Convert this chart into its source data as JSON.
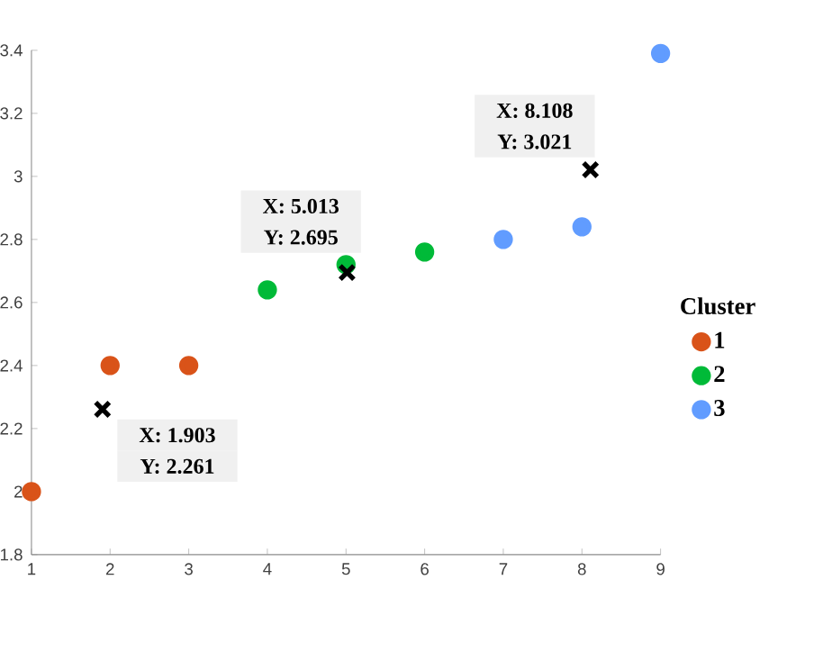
{
  "chart_data": {
    "type": "scatter",
    "legend_title": "Cluster",
    "legend": "right",
    "marker": "circle",
    "xlim": [
      1,
      9
    ],
    "xticks": [
      1,
      2,
      3,
      4,
      5,
      6,
      7,
      8,
      9
    ],
    "ylim": [
      1.8,
      3.4
    ],
    "yticks": [
      1.8,
      2,
      2.2,
      2.4,
      2.6,
      2.8,
      3,
      3.2,
      3.4
    ],
    "series": [
      {
        "name": "1",
        "color": "#d95319",
        "x": [
          1,
          2,
          3
        ],
        "values": [
          2.0,
          2.4,
          2.4
        ]
      },
      {
        "name": "2",
        "color": "#00ba38",
        "x": [
          4,
          5,
          6
        ],
        "values": [
          2.64,
          2.72,
          2.76
        ]
      },
      {
        "name": "3",
        "color": "#619cff",
        "x": [
          7,
          8,
          9
        ],
        "values": [
          2.8,
          2.84,
          3.39
        ]
      },
      {
        "color": "#000000",
        "marker": "cross",
        "x": [
          1.903,
          5.013,
          8.108
        ],
        "values": [
          2.261,
          2.695,
          3.021
        ]
      }
    ],
    "annotations": [
      {
        "text": "X: 1.903",
        "x": 1.903,
        "y": 2.261
      },
      {
        "text": "Y: 2.261",
        "x": 1.903,
        "y": 2.261
      },
      {
        "text": "X: 5.013",
        "x": 5.013,
        "y": 2.695
      },
      {
        "text": "Y: 2.695",
        "x": 5.013,
        "y": 2.695
      },
      {
        "text": "X: 8.108",
        "x": 8.108,
        "y": 3.021
      },
      {
        "text": "Y: 3.021",
        "x": 8.108,
        "y": 3.021
      }
    ]
  }
}
